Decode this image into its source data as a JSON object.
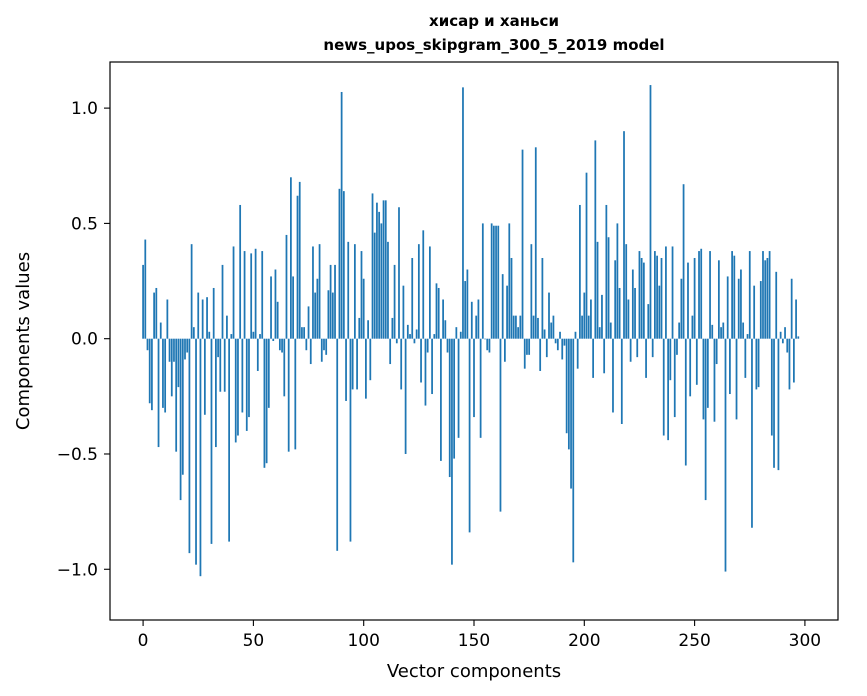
{
  "chart_data": {
    "type": "bar",
    "title": "хисар и ханьси",
    "subtitle": "news_upos_skipgram_300_5_2019 model",
    "xlabel": "Vector components",
    "ylabel": "Components values",
    "xlim": [
      -15,
      315
    ],
    "ylim": [
      -1.22,
      1.2
    ],
    "x_ticks": [
      0,
      50,
      100,
      150,
      200,
      250,
      300
    ],
    "x_tick_labels": [
      "0",
      "50",
      "100",
      "150",
      "200",
      "250",
      "300"
    ],
    "y_ticks": [
      1.0,
      0.5,
      0.0,
      -0.5,
      -1.0
    ],
    "y_tick_labels": [
      "1.0",
      "0.5",
      "0.0",
      "−0.5",
      "−1.0"
    ],
    "bar_color": "#1f77b4",
    "values": [
      0.32,
      0.43,
      -0.05,
      -0.28,
      -0.31,
      0.2,
      0.22,
      -0.47,
      0.07,
      -0.3,
      -0.32,
      0.17,
      -0.1,
      -0.25,
      -0.1,
      -0.49,
      -0.21,
      -0.7,
      -0.59,
      -0.09,
      -0.06,
      -0.93,
      0.41,
      0.05,
      -0.98,
      0.2,
      -1.03,
      0.17,
      -0.33,
      0.18,
      0.03,
      -0.89,
      0.22,
      -0.47,
      -0.08,
      -0.23,
      0.32,
      -0.23,
      0.1,
      -0.88,
      0.02,
      0.4,
      -0.45,
      -0.42,
      0.58,
      -0.32,
      0.38,
      -0.4,
      -0.34,
      0.37,
      0.03,
      0.39,
      -0.14,
      0.02,
      0.38,
      -0.56,
      -0.54,
      -0.3,
      0.27,
      -0.01,
      0.3,
      0.16,
      -0.05,
      -0.06,
      -0.25,
      0.45,
      -0.49,
      0.7,
      0.27,
      -0.48,
      0.62,
      0.68,
      0.05,
      0.05,
      -0.05,
      0.14,
      -0.11,
      0.4,
      0.2,
      0.26,
      0.41,
      -0.1,
      -0.05,
      -0.07,
      0.21,
      0.32,
      0.2,
      0.32,
      -0.92,
      0.65,
      1.07,
      0.64,
      -0.27,
      0.42,
      -0.88,
      -0.22,
      0.41,
      -0.22,
      0.09,
      0.38,
      0.26,
      -0.26,
      0.08,
      -0.18,
      0.63,
      0.46,
      0.59,
      0.55,
      0.5,
      0.6,
      0.6,
      0.42,
      -0.11,
      0.09,
      0.32,
      -0.02,
      0.57,
      -0.22,
      0.23,
      -0.5,
      0.06,
      0.02,
      0.35,
      -0.02,
      0.04,
      0.41,
      -0.19,
      0.47,
      -0.29,
      -0.06,
      0.4,
      -0.24,
      0.02,
      0.24,
      0.22,
      -0.53,
      0.17,
      0.08,
      -0.06,
      -0.6,
      -0.98,
      -0.52,
      0.05,
      -0.43,
      0.03,
      1.09,
      0.25,
      0.3,
      -0.84,
      0.16,
      -0.34,
      0.1,
      0.17,
      -0.43,
      0.5,
      0.0,
      -0.05,
      -0.06,
      0.5,
      0.49,
      0.49,
      0.49,
      -0.75,
      0.28,
      -0.1,
      0.23,
      0.5,
      0.35,
      0.1,
      0.1,
      0.05,
      0.1,
      0.82,
      -0.13,
      -0.07,
      -0.07,
      0.41,
      0.1,
      0.83,
      0.09,
      -0.14,
      0.35,
      0.04,
      -0.08,
      0.2,
      0.07,
      0.1,
      -0.02,
      -0.05,
      0.03,
      -0.09,
      -0.03,
      -0.41,
      -0.48,
      -0.65,
      -0.97,
      0.03,
      -0.13,
      0.58,
      0.1,
      0.2,
      0.72,
      0.1,
      0.17,
      -0.17,
      0.86,
      0.42,
      0.05,
      0.19,
      -0.15,
      0.58,
      0.44,
      0.07,
      -0.32,
      0.34,
      0.5,
      0.22,
      -0.37,
      0.9,
      0.41,
      0.17,
      -0.1,
      0.3,
      0.22,
      -0.08,
      0.38,
      0.35,
      0.33,
      -0.17,
      0.15,
      1.1,
      -0.08,
      0.38,
      0.36,
      0.23,
      0.35,
      -0.42,
      0.4,
      -0.44,
      -0.18,
      0.4,
      -0.34,
      -0.07,
      0.07,
      0.26,
      0.67,
      -0.55,
      0.33,
      -0.25,
      0.1,
      0.35,
      -0.2,
      0.38,
      0.39,
      -0.35,
      -0.7,
      -0.3,
      0.38,
      0.06,
      -0.36,
      -0.11,
      0.34,
      0.05,
      0.07,
      -1.01,
      0.27,
      -0.24,
      0.38,
      0.36,
      -0.35,
      0.26,
      0.3,
      0.07,
      -0.17,
      0.02,
      0.38,
      -0.82,
      0.23,
      -0.22,
      -0.21,
      0.25,
      0.38,
      0.34,
      0.35,
      0.38,
      -0.42,
      -0.56,
      0.29,
      -0.57,
      0.03,
      -0.02,
      0.05,
      -0.06,
      -0.22,
      0.26,
      -0.19,
      0.17,
      0.01
    ]
  }
}
